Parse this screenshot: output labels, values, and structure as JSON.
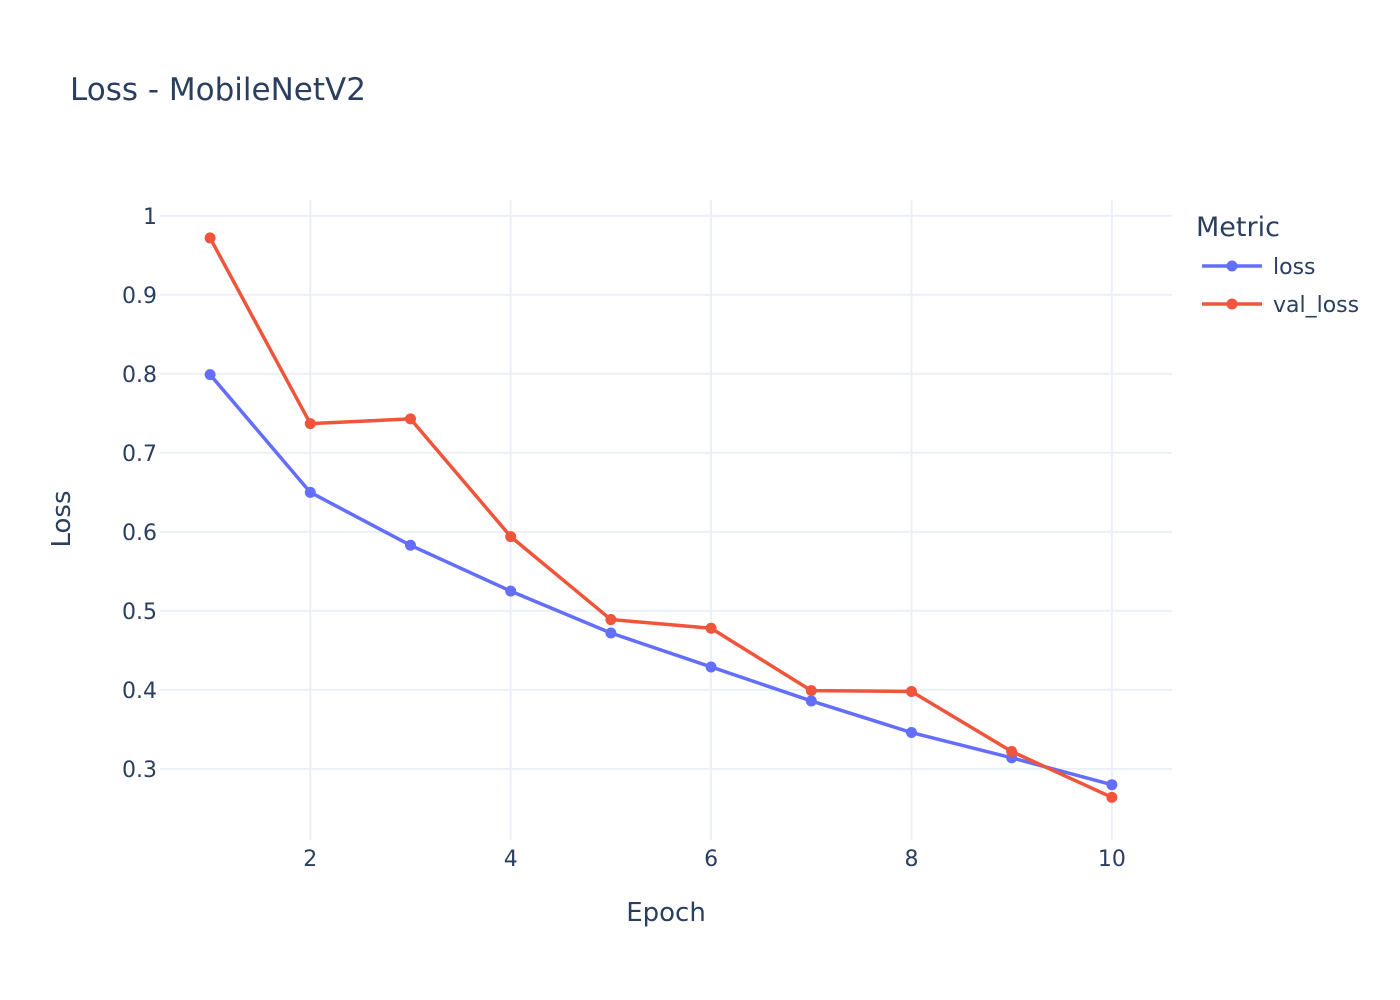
{
  "chart_data": {
    "type": "line",
    "title": "Loss - MobileNetV2",
    "xlabel": "Epoch",
    "ylabel": "Loss",
    "x": [
      1,
      2,
      3,
      4,
      5,
      6,
      7,
      8,
      9,
      10
    ],
    "xlim": [
      0.5,
      10.6
    ],
    "ylim": [
      0.21,
      1.02
    ],
    "xticks": [
      2,
      4,
      6,
      8,
      10
    ],
    "yticks": [
      0.3,
      0.4,
      0.5,
      0.6,
      0.7,
      0.8,
      0.9,
      1
    ],
    "ytick_labels": [
      "0.3",
      "0.4",
      "0.5",
      "0.6",
      "0.7",
      "0.8",
      "0.9",
      "1"
    ],
    "grid": true,
    "legend": {
      "title": "Metric",
      "placement": "top-right, outside plot"
    },
    "series": [
      {
        "name": "loss",
        "color": "#636efa",
        "values": [
          0.799,
          0.65,
          0.583,
          0.525,
          0.472,
          0.429,
          0.386,
          0.346,
          0.314,
          0.28
        ]
      },
      {
        "name": "val_loss",
        "color": "#ef553b",
        "values": [
          0.972,
          0.737,
          0.743,
          0.594,
          0.489,
          0.478,
          0.399,
          0.398,
          0.322,
          0.264
        ]
      }
    ]
  }
}
